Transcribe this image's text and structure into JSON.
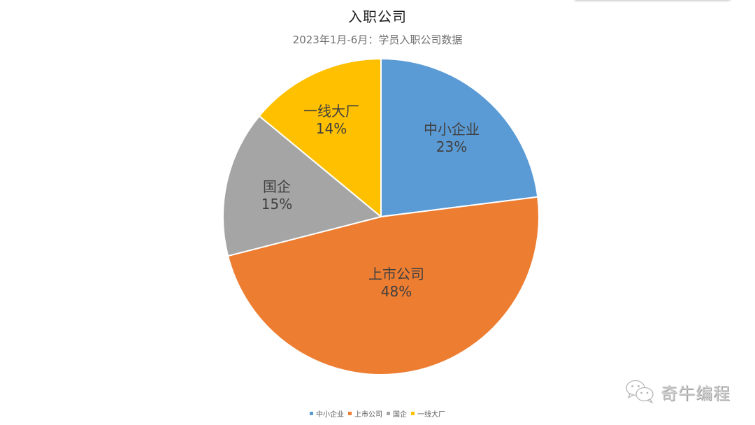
{
  "chart_data": {
    "type": "pie",
    "title": "入职公司",
    "subtitle": "2023年1月-6月：学员入职公司数据",
    "categories": [
      "中小企业",
      "上市公司",
      "国企",
      "一线大厂"
    ],
    "values": [
      23,
      48,
      15,
      14
    ],
    "value_labels": [
      "23%",
      "48%",
      "15%",
      "14%"
    ],
    "colors": [
      "#5B9BD5",
      "#ED7D31",
      "#A5A5A5",
      "#FFC000"
    ],
    "start_angle": "top (12 o'clock), clockwise",
    "legend_position": "bottom",
    "data_labels": "category name + percentage inside slices"
  },
  "legend": {
    "items": [
      {
        "label": "中小企业",
        "color": "#5B9BD5"
      },
      {
        "label": "上市公司",
        "color": "#ED7D31"
      },
      {
        "label": "国企",
        "color": "#A5A5A5"
      },
      {
        "label": "一线大厂",
        "color": "#FFC000"
      }
    ]
  },
  "labels": [
    {
      "name": "中小企业",
      "pct": "23%"
    },
    {
      "name": "上市公司",
      "pct": "48%"
    },
    {
      "name": "国企",
      "pct": "15%"
    },
    {
      "name": "一线大厂",
      "pct": "14%"
    }
  ],
  "watermark": {
    "icon": "wechat-icon",
    "text": "奇牛编程"
  }
}
